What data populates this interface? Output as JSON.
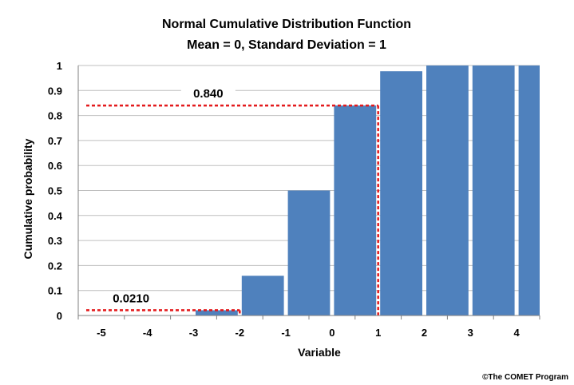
{
  "chart_data": {
    "type": "bar",
    "title": "Normal Cumulative Distribution Function",
    "subtitle": "Mean = 0, Standard Deviation = 1",
    "xlabel": "Variable",
    "ylabel": "Cumulative probability",
    "x_ticks": [
      "-5",
      "-4",
      "-3",
      "-2",
      "-1",
      "0",
      "1",
      "2",
      "3",
      "4"
    ],
    "y_ticks": [
      "0",
      "0.1",
      "0.2",
      "0.3",
      "0.4",
      "0.5",
      "0.6",
      "0.7",
      "0.8",
      "0.9",
      "1"
    ],
    "xlim": [
      -5.5,
      4.5
    ],
    "ylim": [
      0,
      1
    ],
    "grid": true,
    "bins": [
      {
        "x_start": -5,
        "x_end": -4,
        "value": 0.0
      },
      {
        "x_start": -4,
        "x_end": -3,
        "value": 0.0
      },
      {
        "x_start": -3,
        "x_end": -2,
        "value": 0.021
      },
      {
        "x_start": -2,
        "x_end": -1,
        "value": 0.159
      },
      {
        "x_start": -1,
        "x_end": 0,
        "value": 0.5
      },
      {
        "x_start": 0,
        "x_end": 1,
        "value": 0.84
      },
      {
        "x_start": 1,
        "x_end": 2,
        "value": 0.977
      },
      {
        "x_start": 2,
        "x_end": 3,
        "value": 1.0
      },
      {
        "x_start": 3,
        "x_end": 4,
        "value": 1.0
      },
      {
        "x_start": 4,
        "x_end": 5,
        "value": 1.0
      }
    ],
    "annotations": [
      {
        "label": "0.840",
        "x": 1,
        "y": 0.84
      },
      {
        "label": "0.0210",
        "x": -2,
        "y": 0.021
      }
    ],
    "colors": {
      "bar": "#4F81BD",
      "grid": "#BFBFBF",
      "guide": "#E31A1C"
    }
  },
  "credit": "©The COMET Program"
}
